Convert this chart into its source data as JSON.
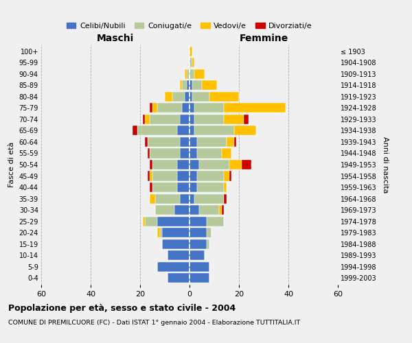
{
  "age_groups": [
    "0-4",
    "5-9",
    "10-14",
    "15-19",
    "20-24",
    "25-29",
    "30-34",
    "35-39",
    "40-44",
    "45-49",
    "50-54",
    "55-59",
    "60-64",
    "65-69",
    "70-74",
    "75-79",
    "80-84",
    "85-89",
    "90-94",
    "95-99",
    "100+"
  ],
  "birth_years": [
    "1999-2003",
    "1994-1998",
    "1989-1993",
    "1984-1988",
    "1979-1983",
    "1974-1978",
    "1969-1973",
    "1964-1968",
    "1959-1963",
    "1954-1958",
    "1949-1953",
    "1944-1948",
    "1939-1943",
    "1934-1938",
    "1929-1933",
    "1924-1928",
    "1919-1923",
    "1914-1918",
    "1909-1913",
    "1904-1908",
    "≤ 1903"
  ],
  "maschi_celibi": [
    9,
    13,
    9,
    11,
    11,
    13,
    6,
    4,
    5,
    5,
    5,
    4,
    4,
    5,
    4,
    3,
    2,
    1,
    0,
    0,
    0
  ],
  "maschi_coniugati": [
    0,
    0,
    0,
    0,
    1,
    5,
    8,
    10,
    10,
    10,
    10,
    12,
    13,
    16,
    12,
    10,
    5,
    2,
    1,
    0,
    0
  ],
  "maschi_vedovi": [
    0,
    0,
    0,
    0,
    1,
    1,
    0,
    2,
    0,
    1,
    0,
    0,
    0,
    0,
    2,
    2,
    3,
    1,
    1,
    0,
    0
  ],
  "maschi_divorziati": [
    0,
    0,
    0,
    0,
    0,
    0,
    0,
    0,
    1,
    1,
    1,
    1,
    1,
    2,
    1,
    1,
    0,
    0,
    0,
    0,
    0
  ],
  "femmine_celibi": [
    8,
    8,
    6,
    7,
    7,
    7,
    4,
    2,
    3,
    3,
    4,
    3,
    3,
    2,
    2,
    2,
    1,
    1,
    0,
    0,
    0
  ],
  "femmine_coniugati": [
    0,
    0,
    0,
    1,
    2,
    7,
    8,
    12,
    11,
    11,
    12,
    10,
    12,
    16,
    12,
    12,
    7,
    4,
    2,
    1,
    0
  ],
  "femmine_vedovi": [
    0,
    0,
    0,
    0,
    0,
    0,
    1,
    0,
    1,
    2,
    5,
    4,
    3,
    9,
    8,
    25,
    12,
    6,
    4,
    1,
    1
  ],
  "femmine_divorziati": [
    0,
    0,
    0,
    0,
    0,
    0,
    1,
    1,
    0,
    1,
    4,
    0,
    1,
    0,
    2,
    0,
    0,
    0,
    0,
    0,
    0
  ],
  "color_celibi": "#4472c4",
  "color_coniugati": "#b5c99a",
  "color_vedovi": "#ffc000",
  "color_divorziati": "#cc0000",
  "title": "Popolazione per età, sesso e stato civile - 2004",
  "subtitle": "COMUNE DI PREMILCUORE (FC) - Dati ISTAT 1° gennaio 2004 - Elaborazione TUTTITALIA.IT",
  "xlabel_left": "Maschi",
  "xlabel_right": "Femmine",
  "ylabel_left": "Fasce di età",
  "ylabel_right": "Anni di nascita",
  "xlim": 60,
  "legend_labels": [
    "Celibi/Nubili",
    "Coniugati/e",
    "Vedovi/e",
    "Divorziati/e"
  ],
  "background_color": "#f0f0f0",
  "bar_height": 0.85
}
